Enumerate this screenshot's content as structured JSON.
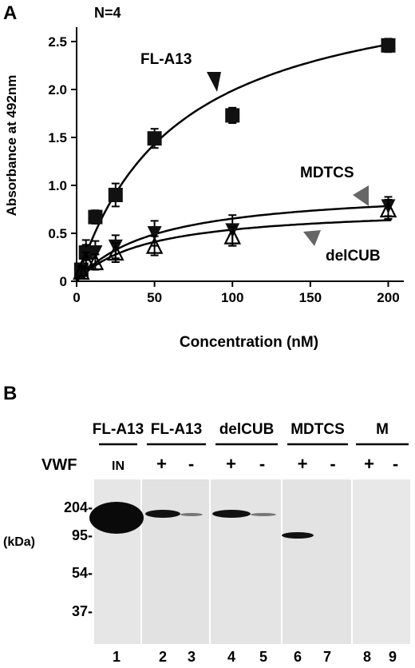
{
  "panel_a": {
    "letter": "A",
    "n_label": "N=4"
  },
  "panel_b": {
    "letter": "B"
  },
  "chart_data": {
    "type": "scatter",
    "title": "",
    "xlabel": "Concentration (nM)",
    "ylabel": "Absorbance at 492nm",
    "xlim": [
      0,
      210
    ],
    "ylim": [
      0,
      2.65
    ],
    "xticks": [
      0,
      50,
      100,
      150,
      200
    ],
    "yticks": [
      0,
      0.5,
      1.0,
      1.5,
      2.0,
      2.5
    ],
    "ytick_labels": [
      "0",
      "0.5",
      "1.0",
      "1.5",
      "2.0",
      "2.5"
    ],
    "grid": false,
    "series": [
      {
        "name": "FL-A13",
        "marker": "square",
        "x": [
          3,
          6,
          12,
          25,
          50,
          100,
          200
        ],
        "y": [
          0.12,
          0.3,
          0.67,
          0.9,
          1.49,
          1.73,
          2.46
        ],
        "err": [
          0.05,
          0.08,
          0.07,
          0.12,
          0.1,
          0.08,
          0.07
        ],
        "fit": {
          "model": "hyperbolic",
          "bmax": 3.26,
          "kd": 64
        }
      },
      {
        "name": "MDTCS",
        "marker": "triangle-down",
        "x": [
          3,
          6,
          12,
          25,
          50,
          100,
          200
        ],
        "y": [
          0.12,
          0.28,
          0.3,
          0.36,
          0.5,
          0.53,
          0.78
        ],
        "err": [
          0.06,
          0.15,
          0.12,
          0.12,
          0.13,
          0.16,
          0.1
        ],
        "fit": {
          "model": "hyperbolic",
          "bmax": 0.98,
          "kd": 50
        }
      },
      {
        "name": "delCUB",
        "marker": "triangle-up",
        "x": [
          3,
          6,
          12,
          25,
          50,
          100,
          200
        ],
        "y": [
          0.1,
          0.22,
          0.2,
          0.3,
          0.37,
          0.47,
          0.75
        ],
        "err": [
          0.06,
          0.08,
          0.08,
          0.1,
          0.1,
          0.1,
          0.1
        ],
        "fit": {
          "model": "hyperbolic",
          "bmax": 0.78,
          "kd": 45
        }
      }
    ],
    "annotations": [
      "FL-A13",
      "MDTCS",
      "delCUB"
    ]
  },
  "blot": {
    "condition_label": "VWF",
    "unit_label": "(kDa)",
    "groups": [
      {
        "name": "FL-A13",
        "signs": [
          "IN"
        ]
      },
      {
        "name": "FL-A13",
        "signs": [
          "+",
          "-"
        ]
      },
      {
        "name": "delCUB",
        "signs": [
          "+",
          "-"
        ]
      },
      {
        "name": "MDTCS",
        "signs": [
          "+",
          "-"
        ]
      },
      {
        "name": "M",
        "signs": [
          "+",
          "-"
        ]
      }
    ],
    "markers": [
      "204-",
      "95-",
      "54-",
      "37-"
    ],
    "lane_numbers": [
      "1",
      "2",
      "3",
      "4",
      "5",
      "6",
      "7",
      "8",
      "9"
    ]
  }
}
